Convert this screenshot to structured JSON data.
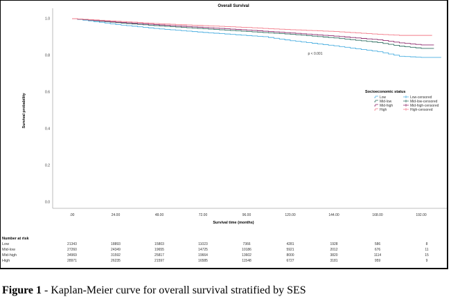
{
  "chart_data": {
    "type": "line",
    "title": "Overall Survival",
    "xlabel": "Survival time (months)",
    "ylabel": "Survival probability",
    "xlim": [
      0,
      200
    ],
    "ylim": [
      0,
      1.0
    ],
    "x_ticks": [
      0,
      24,
      48,
      72,
      96,
      120,
      144,
      168,
      192
    ],
    "x_tick_labels": [
      ".00",
      "24.00",
      "48.00",
      "72.00",
      "96.00",
      "120.00",
      "144.00",
      "168.00",
      "192.00"
    ],
    "y_ticks": [
      0,
      0.2,
      0.4,
      0.6,
      0.8,
      1.0
    ],
    "y_tick_labels": [
      "0.0",
      "0.2",
      "0.4",
      "0.6",
      "0.8",
      "1.0"
    ],
    "annotation": "p < 0.001",
    "legend": {
      "title": "Socioeconomic status",
      "placement": "right"
    },
    "series": [
      {
        "name": "Low",
        "censored_name": "Low-censored",
        "color": "#4aaee0",
        "x": [
          0,
          24,
          48,
          72,
          96,
          105,
          120,
          144,
          168,
          180,
          192,
          203
        ],
        "y": [
          1.0,
          0.968,
          0.944,
          0.925,
          0.908,
          0.902,
          0.88,
          0.852,
          0.82,
          0.795,
          0.789,
          0.789
        ]
      },
      {
        "name": "Mid-low",
        "censored_name": "Mid-low-censored",
        "color": "#2f6e60",
        "x": [
          0,
          24,
          48,
          72,
          96,
          120,
          144,
          168,
          180,
          192,
          199
        ],
        "y": [
          1.0,
          0.978,
          0.96,
          0.945,
          0.93,
          0.915,
          0.895,
          0.87,
          0.85,
          0.838,
          0.838
        ]
      },
      {
        "name": "Mid-high",
        "censored_name": "Mid-high-censored",
        "color": "#8e2a6c",
        "x": [
          0,
          24,
          48,
          72,
          96,
          120,
          144,
          168,
          180,
          192,
          199
        ],
        "y": [
          1.0,
          0.981,
          0.966,
          0.952,
          0.938,
          0.922,
          0.905,
          0.885,
          0.868,
          0.857,
          0.857
        ]
      },
      {
        "name": "High",
        "censored_name": "High-censored",
        "color": "#f27a88",
        "x": [
          0,
          24,
          48,
          72,
          96,
          105,
          120,
          144,
          168,
          180,
          198
        ],
        "y": [
          1.0,
          0.986,
          0.972,
          0.962,
          0.952,
          0.947,
          0.94,
          0.93,
          0.915,
          0.909,
          0.909
        ]
      }
    ],
    "risk_table": {
      "title": "Number at risk",
      "rows": [
        {
          "label": "Low",
          "values": [
            "21343",
            "18893",
            "15803",
            "11023",
            "7366",
            "4281",
            "1928",
            "586",
            "8"
          ]
        },
        {
          "label": "Mid-low",
          "values": [
            "27260",
            "24349",
            "19655",
            "14725",
            "10186",
            "5921",
            "2012",
            "676",
            "11"
          ]
        },
        {
          "label": "Mid-high",
          "values": [
            "34969",
            "31592",
            "25817",
            "19664",
            "13602",
            "8000",
            "3820",
            "1114",
            "15"
          ]
        },
        {
          "label": "High",
          "values": [
            "28971",
            "26235",
            "21597",
            "16585",
            "11548",
            "6727",
            "3181",
            "959",
            "9"
          ]
        }
      ]
    }
  },
  "caption": {
    "label": "Figure 1",
    "text": " - Kaplan-Meier curve for overall survival stratified by SES"
  }
}
